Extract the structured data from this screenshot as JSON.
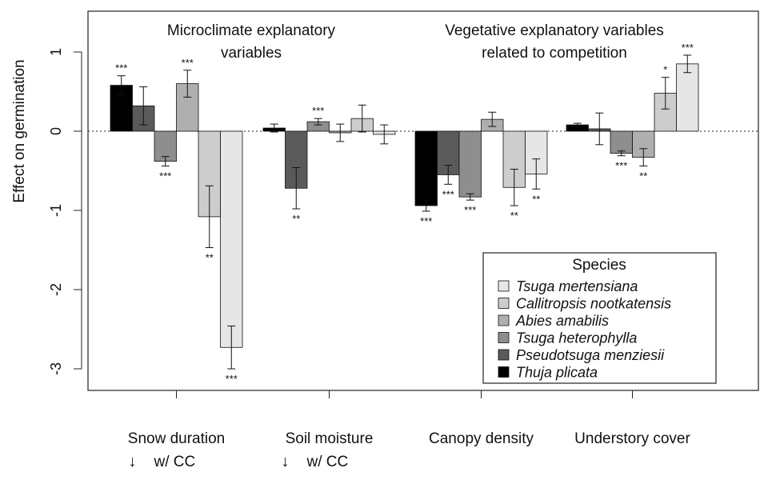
{
  "chart_data": {
    "type": "bar",
    "ylabel": "Effect on germination",
    "ylim": [
      -3.25,
      1.5
    ],
    "yticks": [
      1,
      0,
      -1,
      -2,
      -3
    ],
    "ytick_labels": [
      "1",
      "0",
      "-1",
      "-2",
      "-3"
    ],
    "groups": [
      {
        "label": "Snow duration",
        "sublabel_arrow": "↓",
        "sublabel": "w/ CC",
        "bars": [
          {
            "species": "Thuja plicata",
            "value": 0.58,
            "err": 0.12,
            "sig": "***"
          },
          {
            "species": "Pseudotsuga menziesii",
            "value": 0.32,
            "err": 0.24,
            "sig": ""
          },
          {
            "species": "Tsuga heterophylla",
            "value": -0.38,
            "err": 0.06,
            "sig": "***"
          },
          {
            "species": "Abies amabilis",
            "value": 0.6,
            "err": 0.17,
            "sig": "***"
          },
          {
            "species": "Callitropsis nootkatensis",
            "value": -1.08,
            "err": 0.39,
            "sig": "**"
          },
          {
            "species": "Tsuga mertensiana",
            "value": -2.73,
            "err": 0.27,
            "sig": "***"
          }
        ]
      },
      {
        "label": "Soil moisture",
        "sublabel_arrow": "↓",
        "sublabel": "w/ CC",
        "bars": [
          {
            "species": "Thuja plicata",
            "value": 0.04,
            "err": 0.05,
            "sig": ""
          },
          {
            "species": "Pseudotsuga menziesii",
            "value": -0.72,
            "err": 0.26,
            "sig": "**"
          },
          {
            "species": "Tsuga heterophylla",
            "value": 0.12,
            "err": 0.04,
            "sig": "***"
          },
          {
            "species": "Abies amabilis",
            "value": -0.02,
            "err": 0.11,
            "sig": ""
          },
          {
            "species": "Callitropsis nootkatensis",
            "value": 0.16,
            "err": 0.17,
            "sig": ""
          },
          {
            "species": "Tsuga mertensiana",
            "value": -0.04,
            "err": 0.12,
            "sig": ""
          }
        ]
      },
      {
        "label": "Canopy density",
        "sublabel_arrow": "",
        "sublabel": "",
        "bars": [
          {
            "species": "Thuja plicata",
            "value": -0.94,
            "err": 0.07,
            "sig": "***"
          },
          {
            "species": "Pseudotsuga menziesii",
            "value": -0.55,
            "err": 0.12,
            "sig": "***"
          },
          {
            "species": "Tsuga heterophylla",
            "value": -0.83,
            "err": 0.04,
            "sig": "***"
          },
          {
            "species": "Abies amabilis",
            "value": 0.15,
            "err": 0.09,
            "sig": ""
          },
          {
            "species": "Callitropsis nootkatensis",
            "value": -0.71,
            "err": 0.23,
            "sig": "**"
          },
          {
            "species": "Tsuga mertensiana",
            "value": -0.54,
            "err": 0.19,
            "sig": "**"
          }
        ]
      },
      {
        "label": "Understory cover",
        "sublabel_arrow": "",
        "sublabel": "",
        "bars": [
          {
            "species": "Thuja plicata",
            "value": 0.08,
            "err": 0.02,
            "sig": ""
          },
          {
            "species": "Pseudotsuga menziesii",
            "value": 0.03,
            "err": 0.2,
            "sig": ""
          },
          {
            "species": "Tsuga heterophylla",
            "value": -0.28,
            "err": 0.03,
            "sig": "***"
          },
          {
            "species": "Abies amabilis",
            "value": -0.33,
            "err": 0.11,
            "sig": "**"
          },
          {
            "species": "Callitropsis nootkatensis",
            "value": 0.48,
            "err": 0.2,
            "sig": "*"
          },
          {
            "species": "Tsuga mertensiana",
            "value": 0.85,
            "err": 0.11,
            "sig": "***"
          }
        ]
      }
    ],
    "section_labels": [
      {
        "lines": [
          "Microclimate explanatory",
          "variables"
        ]
      },
      {
        "lines": [
          "Vegetative explanatory variables",
          "related to competition"
        ]
      }
    ],
    "legend": {
      "title": "Species",
      "placement": "bottom-right",
      "entries": [
        {
          "name": "Tsuga mertensiana",
          "color": "#e6e6e6"
        },
        {
          "name": "Callitropsis nootkatensis",
          "color": "#cdcdcd"
        },
        {
          "name": "Abies amabilis",
          "color": "#afafaf"
        },
        {
          "name": "Tsuga heterophylla",
          "color": "#8e8e8e"
        },
        {
          "name": "Pseudotsuga menziesii",
          "color": "#5a5a5a"
        },
        {
          "name": "Thuja plicata",
          "color": "#000000"
        }
      ]
    },
    "species_colors": {
      "Thuja plicata": "#000000",
      "Pseudotsuga menziesii": "#5a5a5a",
      "Tsuga heterophylla": "#8e8e8e",
      "Abies amabilis": "#afafaf",
      "Callitropsis nootkatensis": "#cdcdcd",
      "Tsuga mertensiana": "#e6e6e6"
    },
    "reference_line": 0
  }
}
